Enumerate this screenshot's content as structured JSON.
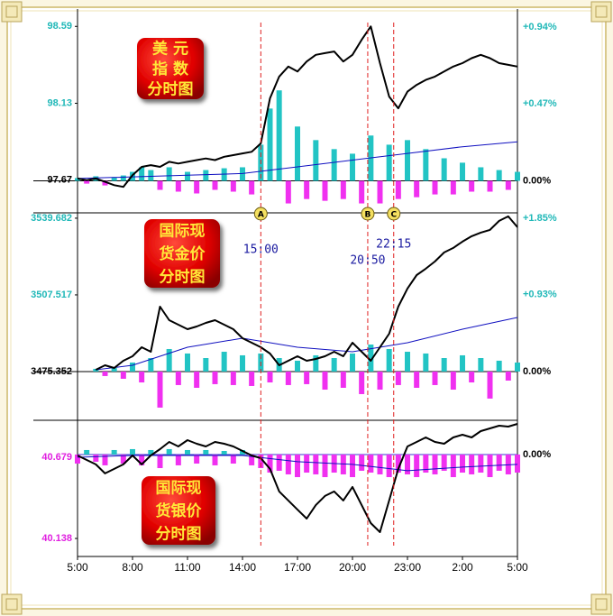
{
  "chart_data": [
    {
      "type": "line",
      "title_lines": [
        "美 元",
        "指 数",
        "分时图"
      ],
      "x": [
        5,
        5.5,
        6,
        6.5,
        7,
        7.5,
        8,
        8.5,
        9,
        9.5,
        10,
        10.5,
        11,
        11.5,
        12,
        12.5,
        13,
        13.5,
        14,
        14.5,
        15,
        15.5,
        16,
        16.5,
        17,
        17.5,
        18,
        18.5,
        19,
        19.5,
        20,
        20.5,
        21,
        21.5,
        22,
        22.5,
        23,
        23.5,
        24,
        24.5,
        25,
        25.5,
        26,
        26.5,
        27,
        27.5,
        28,
        28.5,
        29
      ],
      "ylim": [
        97.48,
        98.64
      ],
      "yticks": [
        97.67,
        98.13,
        98.59
      ],
      "ytick_colors": [
        "#000000",
        "#20b8b8",
        "#20b8b8"
      ],
      "y2lim": [
        -0.19,
        0.995
      ],
      "y2ticks": [
        {
          "value": 0,
          "label": "0.00%"
        },
        {
          "value": 0.47,
          "label": "+0.47%"
        },
        {
          "value": 0.94,
          "label": "+0.94%"
        }
      ],
      "y2tick_colors": [
        "#000000",
        "#20b8b8",
        "#20b8b8"
      ],
      "series": [
        {
          "type": "bar",
          "axis": "y2",
          "colors": [
            "#22c4c4",
            "#f030f0"
          ],
          "values": [
            0.017,
            -0.017,
            0.028,
            -0.028,
            0.022,
            0.033,
            0.055,
            0.083,
            0.066,
            -0.055,
            0.083,
            -0.066,
            0.055,
            -0.077,
            0.066,
            -0.055,
            0.077,
            -0.066,
            0.083,
            -0.083,
            0.221,
            0.442,
            0.553,
            -0.138,
            0.332,
            -0.111,
            0.249,
            -0.122,
            0.194,
            -0.111,
            0.166,
            -0.138,
            0.277,
            -0.138,
            0.221,
            -0.111,
            0.249,
            -0.1,
            0.194,
            -0.083,
            0.138,
            -0.083,
            0.111,
            -0.066,
            0.083,
            -0.066,
            0.066,
            -0.055,
            0.055
          ]
        },
        {
          "type": "line",
          "color": "#1010c0",
          "x": [
            5,
            8,
            11,
            14,
            17,
            20,
            23,
            26,
            29
          ],
          "values": [
            97.68,
            97.69,
            97.7,
            97.71,
            97.75,
            97.79,
            97.83,
            97.87,
            97.9
          ]
        },
        {
          "type": "line",
          "color": "#000000",
          "values": [
            97.68,
            97.67,
            97.68,
            97.66,
            97.64,
            97.63,
            97.7,
            97.75,
            97.76,
            97.75,
            97.78,
            97.77,
            97.78,
            97.79,
            97.8,
            97.79,
            97.81,
            97.82,
            97.83,
            97.84,
            97.89,
            98.16,
            98.29,
            98.35,
            98.32,
            98.38,
            98.42,
            98.43,
            98.44,
            98.38,
            98.42,
            98.51,
            98.59,
            98.37,
            98.17,
            98.1,
            98.2,
            98.24,
            98.27,
            98.29,
            98.32,
            98.35,
            98.37,
            98.4,
            98.42,
            98.4,
            98.37,
            98.36,
            98.35
          ]
        }
      ]
    },
    {
      "type": "line",
      "title_lines": [
        "国际现",
        "货金价",
        "分时图"
      ],
      "x": [
        5,
        5.5,
        6,
        6.5,
        7,
        7.5,
        8,
        8.5,
        9,
        9.5,
        10,
        10.5,
        11,
        11.5,
        12,
        12.5,
        13,
        13.5,
        14,
        14.5,
        15,
        15.5,
        16,
        16.5,
        17,
        17.5,
        18,
        18.5,
        19,
        19.5,
        20,
        20.5,
        21,
        21.5,
        22,
        22.5,
        23,
        23.5,
        24,
        24.5,
        25,
        25.5,
        26,
        26.5,
        27,
        27.5,
        28,
        28.5,
        29
      ],
      "ylim": [
        3455.3,
        3542.3
      ],
      "yticks": [
        3475.352,
        3507.517,
        3539.682
      ],
      "ytick_colors": [
        "#000000",
        "#20b8b8",
        "#20b8b8"
      ],
      "y2lim": [
        -0.577,
        1.926
      ],
      "y2ticks": [
        {
          "value": 0,
          "label": "0.00%"
        },
        {
          "value": 0.93,
          "label": "+0.93%"
        },
        {
          "value": 1.85,
          "label": "+1.85%"
        }
      ],
      "y2tick_colors": [
        "#000000",
        "#20b8b8",
        "#20b8b8"
      ],
      "series": [
        {
          "type": "bar",
          "axis": "y2",
          "colors": [
            "#22c4c4",
            "#f030f0"
          ],
          "values": [
            null,
            null,
            0.033,
            -0.054,
            0.044,
            -0.087,
            0.109,
            -0.131,
            0.163,
            -0.435,
            0.272,
            -0.163,
            0.218,
            -0.196,
            0.163,
            -0.152,
            0.239,
            -0.163,
            0.196,
            -0.174,
            0.218,
            -0.131,
            0.163,
            -0.163,
            0.131,
            -0.152,
            0.196,
            -0.218,
            0.163,
            -0.196,
            0.218,
            -0.272,
            0.326,
            -0.218,
            0.272,
            -0.163,
            0.239,
            -0.196,
            0.218,
            -0.163,
            0.163,
            -0.218,
            0.196,
            -0.131,
            0.163,
            -0.326,
            0.131,
            -0.109,
            0.109
          ]
        },
        {
          "type": "line",
          "color": "#1010c0",
          "x": [
            6,
            8,
            11,
            14,
            17,
            20,
            23,
            26,
            29
          ],
          "values": [
            3476.11,
            3478.0,
            3485.57,
            3489.35,
            3485.57,
            3483.68,
            3487.46,
            3493.14,
            3498.06
          ]
        },
        {
          "type": "line",
          "color": "#000000",
          "values": [
            null,
            null,
            3476.11,
            3478.0,
            3476.87,
            3479.89,
            3481.78,
            3485.57,
            3483.68,
            3502.6,
            3496.92,
            3495.03,
            3493.14,
            3494.27,
            3495.79,
            3496.92,
            3495.03,
            3493.14,
            3489.35,
            3487.46,
            3485.57,
            3482.92,
            3478.0,
            3479.89,
            3481.78,
            3479.89,
            3480.65,
            3481.78,
            3483.68,
            3481.78,
            3487.46,
            3483.68,
            3479.89,
            3485.57,
            3491.24,
            3502.6,
            3510.17,
            3515.84,
            3518.49,
            3521.52,
            3525.3,
            3527.19,
            3529.84,
            3532.11,
            3533.63,
            3534.76,
            3538.54,
            3540.44,
            3535.9
          ]
        }
      ]
    },
    {
      "type": "line",
      "title_lines": [
        "国际现",
        "货银价",
        "分时图"
      ],
      "x": [
        5,
        5.5,
        6,
        6.5,
        7,
        7.5,
        8,
        8.5,
        9,
        9.5,
        10,
        10.5,
        11,
        11.5,
        12,
        12.5,
        13,
        13.5,
        14,
        14.5,
        15,
        15.5,
        16,
        16.5,
        17,
        17.5,
        18,
        18.5,
        19,
        19.5,
        20,
        20.5,
        21,
        21.5,
        22,
        22.5,
        23,
        23.5,
        24,
        24.5,
        25,
        25.5,
        26,
        26.5,
        27,
        27.5,
        28,
        28.5,
        29
      ],
      "xlim": [
        5,
        29
      ],
      "xticks": [
        {
          "value": 5,
          "label": "5:00"
        },
        {
          "value": 8,
          "label": "8:00"
        },
        {
          "value": 11,
          "label": "11:00"
        },
        {
          "value": 14,
          "label": "14:00"
        },
        {
          "value": 17,
          "label": "17:00"
        },
        {
          "value": 20,
          "label": "20:00"
        },
        {
          "value": 23,
          "label": "23:00"
        },
        {
          "value": 26,
          "label": "2:00"
        },
        {
          "value": 29,
          "label": "5:00"
        }
      ],
      "ylim": [
        40.018,
        40.931
      ],
      "yticks": [
        40.138,
        40.679
      ],
      "ytick_colors": [
        "#e020e0",
        "#e020e0"
      ],
      "y2lim": [
        -1.67,
        0.576
      ],
      "y2ticks": [
        {
          "value": 0,
          "label": "0.00%"
        }
      ],
      "y2tick_colors": [
        "#000000"
      ],
      "series": [
        {
          "type": "bar",
          "axis": "y2",
          "colors": [
            "#22c4c4",
            "#f030f0"
          ],
          "values": [
            -0.148,
            0.074,
            -0.118,
            -0.177,
            0.074,
            -0.148,
            0.089,
            -0.177,
            0.074,
            -0.222,
            0.089,
            -0.177,
            0.074,
            -0.148,
            0.074,
            -0.177,
            0.059,
            -0.148,
            0.074,
            -0.177,
            -0.222,
            -0.296,
            -0.266,
            -0.325,
            -0.37,
            -0.296,
            -0.325,
            -0.37,
            -0.296,
            -0.325,
            -0.37,
            -0.266,
            -0.296,
            -0.325,
            -0.37,
            -0.296,
            -0.325,
            -0.37,
            -0.296,
            -0.325,
            -0.266,
            -0.37,
            -0.296,
            -0.325,
            -0.296,
            -0.37,
            -0.266,
            -0.325,
            -0.296
          ]
        },
        {
          "type": "line",
          "color": "#1010c0",
          "x": [
            5,
            8,
            11,
            14,
            17,
            20,
            23,
            26,
            29
          ],
          "values": [
            40.679,
            40.691,
            40.691,
            40.691,
            40.649,
            40.631,
            40.589,
            40.613,
            40.631
          ]
        },
        {
          "type": "line",
          "color": "#000000",
          "values": [
            40.691,
            40.661,
            40.631,
            40.571,
            40.601,
            40.631,
            40.691,
            40.631,
            40.691,
            40.733,
            40.781,
            40.751,
            40.793,
            40.769,
            40.751,
            40.781,
            40.769,
            40.751,
            40.721,
            40.691,
            40.673,
            40.601,
            40.451,
            40.391,
            40.33,
            40.27,
            40.36,
            40.421,
            40.451,
            40.391,
            40.481,
            40.36,
            40.24,
            40.18,
            40.391,
            40.601,
            40.751,
            40.781,
            40.811,
            40.781,
            40.769,
            40.811,
            40.829,
            40.811,
            40.853,
            40.871,
            40.889,
            40.883,
            40.901
          ]
        }
      ]
    }
  ],
  "annotations": [
    {
      "marker": "A",
      "label": "15:00",
      "x": 15
    },
    {
      "marker": "B",
      "label": "20:50",
      "x": 20.833
    },
    {
      "marker": "C",
      "label": "22:15",
      "x": 22.25
    }
  ]
}
